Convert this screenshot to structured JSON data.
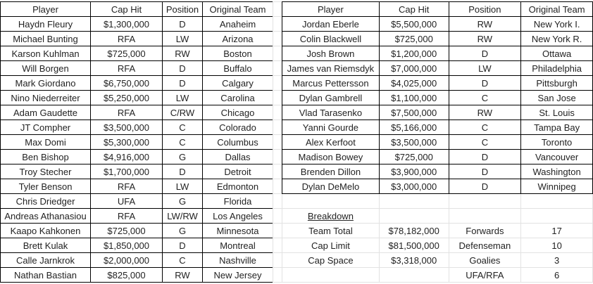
{
  "left_table": {
    "headers": [
      "Player",
      "Cap Hit",
      "Position",
      "Original Team"
    ],
    "rows": [
      [
        "Haydn Fleury",
        "$1,300,000",
        "D",
        "Anaheim"
      ],
      [
        "Michael Bunting",
        "RFA",
        "LW",
        "Arizona"
      ],
      [
        "Karson Kuhlman",
        "$725,000",
        "RW",
        "Boston"
      ],
      [
        "Will Borgen",
        "RFA",
        "D",
        "Buffalo"
      ],
      [
        "Mark Giordano",
        "$6,750,000",
        "D",
        "Calgary"
      ],
      [
        "Nino Niederreiter",
        "$5,250,000",
        "LW",
        "Carolina"
      ],
      [
        "Adam Gaudette",
        "RFA",
        "C/RW",
        "Chicago"
      ],
      [
        "JT Compher",
        "$3,500,000",
        "C",
        "Colorado"
      ],
      [
        "Max Domi",
        "$5,300,000",
        "C",
        "Columbus"
      ],
      [
        "Ben Bishop",
        "$4,916,000",
        "G",
        "Dallas"
      ],
      [
        "Troy Stecher",
        "$1,700,000",
        "D",
        "Detroit"
      ],
      [
        "Tyler Benson",
        "RFA",
        "LW",
        "Edmonton"
      ],
      [
        "Chris Driedger",
        "UFA",
        "G",
        "Florida"
      ],
      [
        "Andreas Athanasiou",
        "RFA",
        "LW/RW",
        "Los Angeles"
      ],
      [
        "Kaapo Kahkonen",
        "$725,000",
        "G",
        "Minnesota"
      ],
      [
        "Brett Kulak",
        "$1,850,000",
        "D",
        "Montreal"
      ],
      [
        "Calle Jarnkrok",
        "$2,000,000",
        "C",
        "Nashville"
      ],
      [
        "Nathan Bastian",
        "$825,000",
        "RW",
        "New Jersey"
      ]
    ]
  },
  "right_table": {
    "headers": [
      "Player",
      "Cap Hit",
      "Position",
      "Original Team"
    ],
    "rows": [
      [
        "Jordan Eberle",
        "$5,500,000",
        "RW",
        "New York I."
      ],
      [
        "Colin Blackwell",
        "$725,000",
        "RW",
        "New York R."
      ],
      [
        "Josh Brown",
        "$1,200,000",
        "D",
        "Ottawa"
      ],
      [
        "James van Riemsdyk",
        "$7,000,000",
        "LW",
        "Philadelphia"
      ],
      [
        "Marcus Pettersson",
        "$4,025,000",
        "D",
        "Pittsburgh"
      ],
      [
        "Dylan Gambrell",
        "$1,100,000",
        "C",
        "San Jose"
      ],
      [
        "Vlad Tarasenko",
        "$7,500,000",
        "RW",
        "St. Louis"
      ],
      [
        "Yanni Gourde",
        "$5,166,000",
        "C",
        "Tampa Bay"
      ],
      [
        "Alex Kerfoot",
        "$3,500,000",
        "C",
        "Toronto"
      ],
      [
        "Madison Bowey",
        "$725,000",
        "D",
        "Vancouver"
      ],
      [
        "Brenden Dillon",
        "$3,900,000",
        "D",
        "Washington"
      ],
      [
        "Dylan DeMelo",
        "$3,000,000",
        "D",
        "Winnipeg"
      ]
    ]
  },
  "breakdown": {
    "title": "Breakdown",
    "rows": [
      [
        "Team Total",
        "$78,182,000",
        "Forwards",
        "17"
      ],
      [
        "Cap Limit",
        "$81,500,000",
        "Defenseman",
        "10"
      ],
      [
        "Cap Space",
        "$3,318,000",
        "Goalies",
        "3"
      ],
      [
        "",
        "",
        "UFA/RFA",
        "6"
      ]
    ]
  }
}
